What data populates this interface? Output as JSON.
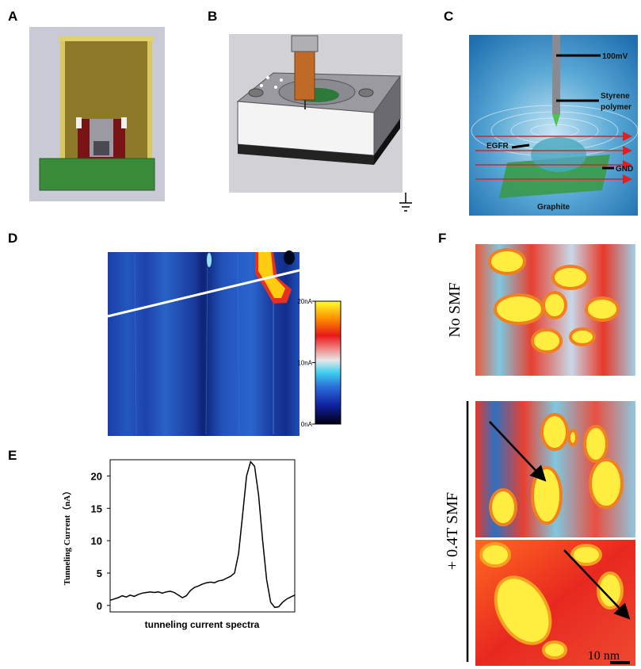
{
  "panel_labels": [
    "A",
    "B",
    "C",
    "D",
    "E",
    "F"
  ],
  "panel_c": {
    "voltage": "100mV",
    "tip_coating": [
      "Styrene",
      "polymer"
    ],
    "receptor": "EGFR",
    "ground": "GND",
    "substrate": "Graphite"
  },
  "panel_d": {
    "colorbar": {
      "lim": [
        0,
        20
      ],
      "ticks": [
        {
          "value": 20,
          "label": "20nA"
        },
        {
          "value": 10,
          "label": "10nA"
        },
        {
          "value": 0,
          "label": "0nA"
        }
      ]
    }
  },
  "chart_data": {
    "type": "line",
    "ylabel": "Tunneling Current（nA）",
    "xlabel": "tunneling current spectra",
    "color": "#000000",
    "ylim": [
      -1,
      22.5
    ],
    "yticks": [
      0,
      5,
      10,
      15,
      20
    ],
    "values": [
      0.8,
      1.0,
      1.2,
      1.5,
      1.3,
      1.6,
      1.4,
      1.7,
      1.9,
      2.0,
      2.1,
      2.0,
      2.1,
      1.9,
      2.1,
      2.2,
      2.0,
      1.6,
      1.2,
      1.5,
      2.3,
      2.8,
      3.0,
      3.3,
      3.5,
      3.6,
      3.5,
      3.8,
      3.9,
      4.2,
      4.5,
      5.0,
      8,
      14,
      20,
      22.2,
      21.5,
      17,
      10,
      4,
      0.5,
      -0.3,
      -0.2,
      0.5,
      1.0,
      1.3,
      1.6
    ]
  },
  "panel_f": {
    "labels": [
      "No SMF",
      "+ 0.4T SMF"
    ],
    "scale_bar": "10 nm"
  }
}
